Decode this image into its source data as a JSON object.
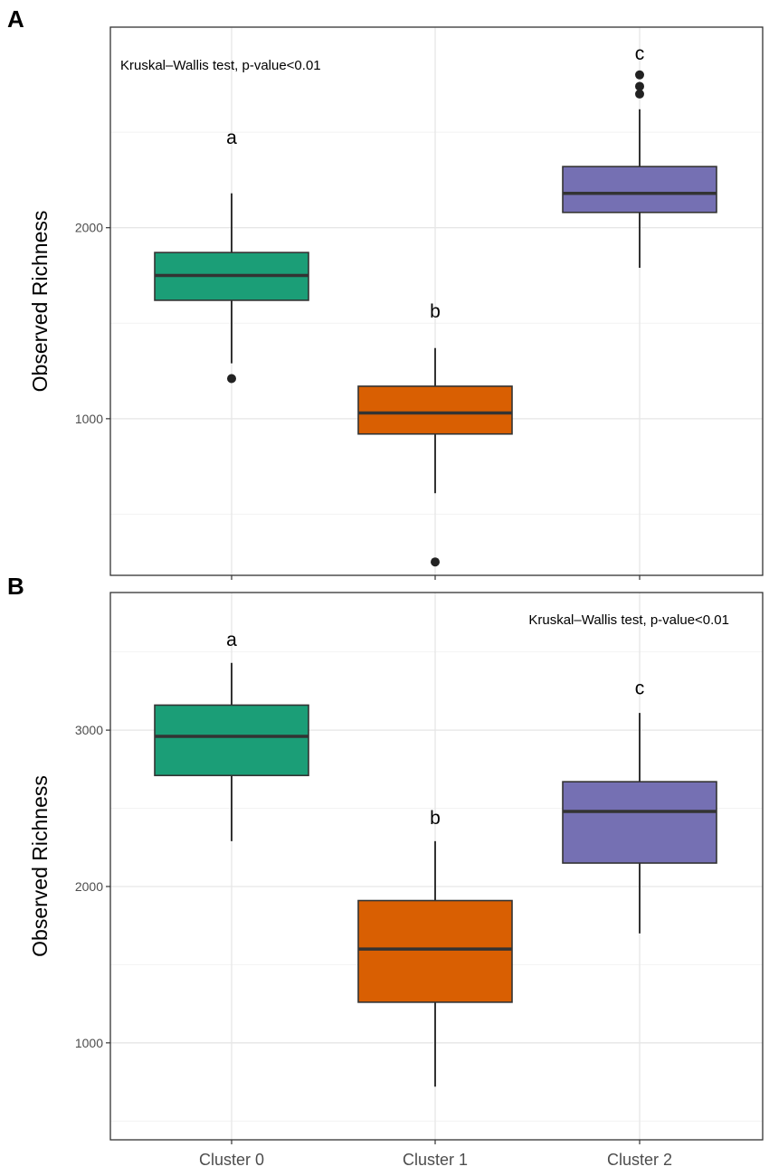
{
  "chart_data": [
    {
      "panel": "A",
      "type": "box",
      "ylabel": "Observed Richness",
      "xlabel": "",
      "categories": [
        "Cluster 0",
        "Cluster 1",
        "Cluster 2"
      ],
      "yticks": [
        1000,
        2000
      ],
      "ylim": [
        180,
        3050
      ],
      "annotation": "Kruskal–Wallis test, p-value<0.01",
      "annotation_position": "top-left",
      "boxes": [
        {
          "category": "Cluster 0",
          "color": "#1b9e77",
          "q1": 1620,
          "median": 1750,
          "q3": 1870,
          "whisker_low": 1290,
          "whisker_high": 2180,
          "outliers": [
            1210
          ],
          "label": "a",
          "label_y": 2440
        },
        {
          "category": "Cluster 1",
          "color": "#d95f02",
          "q1": 920,
          "median": 1030,
          "q3": 1170,
          "whisker_low": 610,
          "whisker_high": 1370,
          "outliers": [
            250
          ],
          "label": "b",
          "label_y": 1530
        },
        {
          "category": "Cluster 2",
          "color": "#7570b3",
          "q1": 2080,
          "median": 2180,
          "q3": 2320,
          "whisker_low": 1790,
          "whisker_high": 2620,
          "outliers": [
            2700,
            2740,
            2800
          ],
          "label": "c",
          "label_y": 2880
        }
      ]
    },
    {
      "panel": "B",
      "type": "box",
      "ylabel": "Observed Richness",
      "xlabel": "",
      "categories": [
        "Cluster 0",
        "Cluster 1",
        "Cluster 2"
      ],
      "yticks": [
        1000,
        2000,
        3000
      ],
      "ylim": [
        380,
        3880
      ],
      "annotation": "Kruskal–Wallis test, p-value<0.01",
      "annotation_position": "top-right",
      "boxes": [
        {
          "category": "Cluster 0",
          "color": "#1b9e77",
          "q1": 2710,
          "median": 2960,
          "q3": 3160,
          "whisker_low": 2290,
          "whisker_high": 3430,
          "outliers": [],
          "label": "a",
          "label_y": 3540
        },
        {
          "category": "Cluster 1",
          "color": "#d95f02",
          "q1": 1260,
          "median": 1600,
          "q3": 1910,
          "whisker_low": 720,
          "whisker_high": 2290,
          "outliers": [],
          "label": "b",
          "label_y": 2400
        },
        {
          "category": "Cluster 2",
          "color": "#7570b3",
          "q1": 2150,
          "median": 2480,
          "q3": 2670,
          "whisker_low": 1700,
          "whisker_high": 3110,
          "outliers": [],
          "label": "c",
          "label_y": 3230
        }
      ]
    }
  ]
}
